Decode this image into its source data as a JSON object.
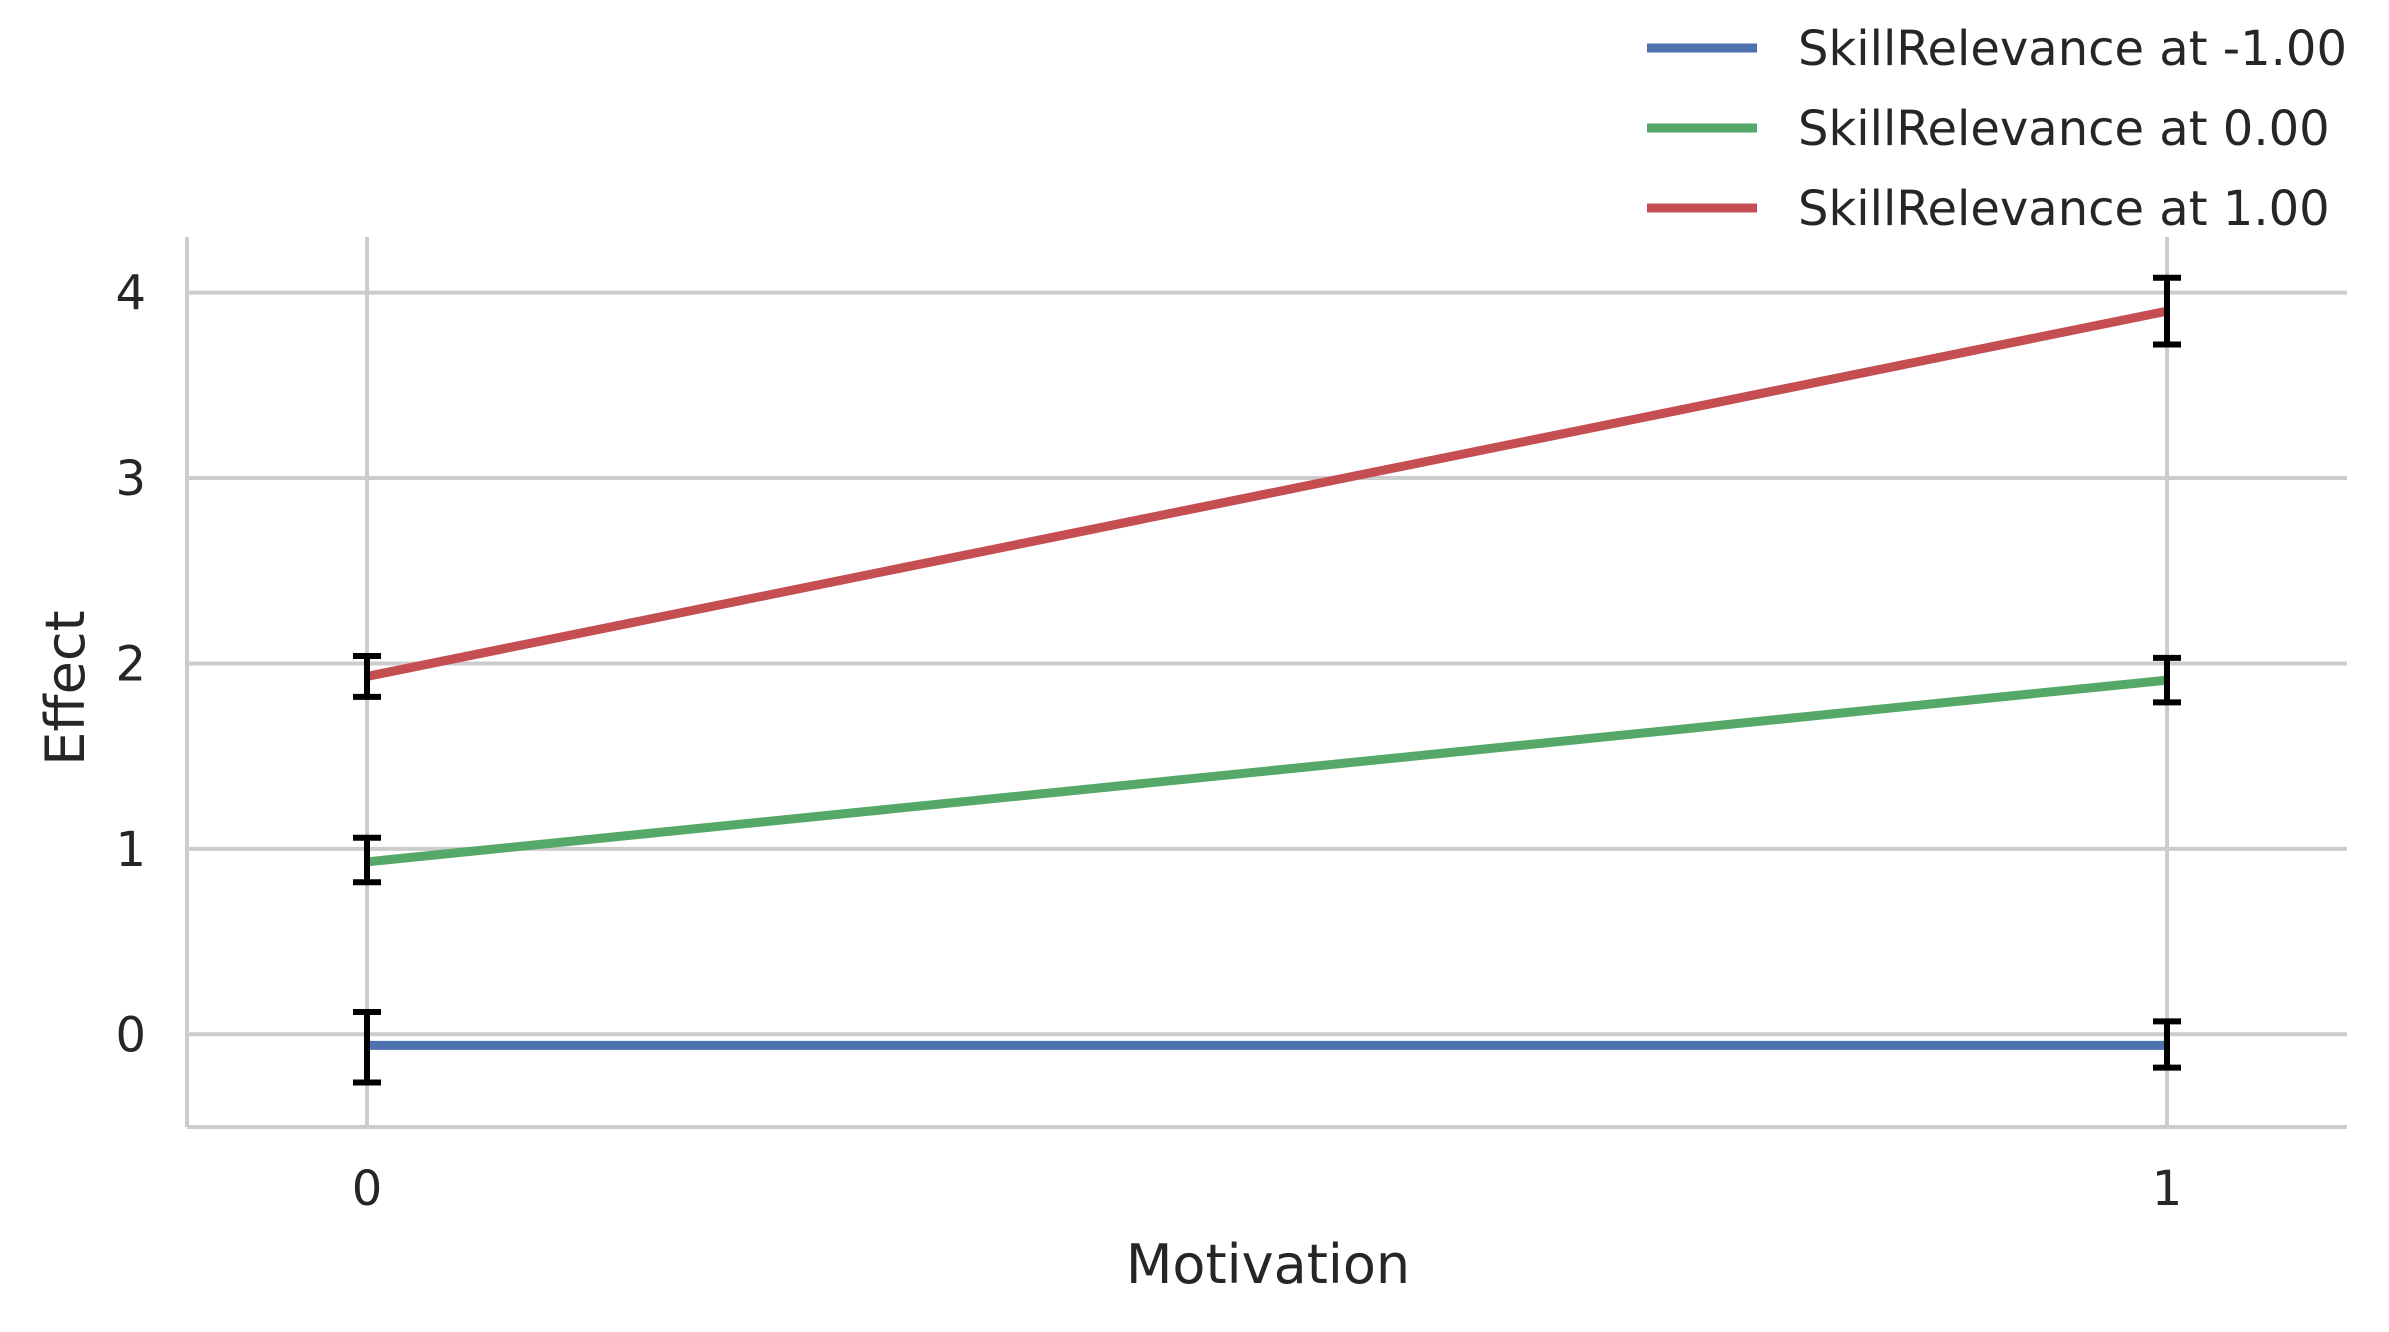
{
  "chart_data": {
    "type": "line",
    "title": "",
    "xlabel": "Motivation",
    "ylabel": "Effect",
    "x": [
      0,
      1
    ],
    "x_ticks": [
      "0",
      "1"
    ],
    "y_ticks": [
      "0",
      "1",
      "2",
      "3",
      "4"
    ],
    "xlim": [
      -0.1,
      1.1
    ],
    "ylim": [
      -0.5,
      4.3
    ],
    "grid": true,
    "legend_position": "top-right",
    "series": [
      {
        "name": "SkillRelevance at -1.00",
        "color": "#4c72b0",
        "values": [
          -0.06,
          -0.06
        ],
        "error_low": [
          -0.26,
          -0.18
        ],
        "error_high": [
          0.12,
          0.07
        ]
      },
      {
        "name": "SkillRelevance at 0.00",
        "color": "#55a868",
        "values": [
          0.93,
          1.91
        ],
        "error_low": [
          0.82,
          1.79
        ],
        "error_high": [
          1.06,
          2.03
        ]
      },
      {
        "name": "SkillRelevance at 1.00",
        "color": "#c44e52",
        "values": [
          1.93,
          3.9
        ],
        "error_low": [
          1.82,
          3.72
        ],
        "error_high": [
          2.04,
          4.08
        ]
      }
    ]
  }
}
